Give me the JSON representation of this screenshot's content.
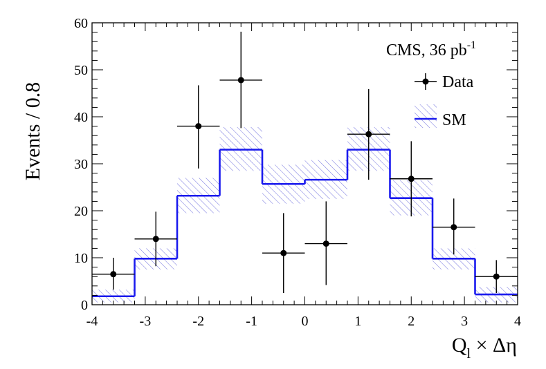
{
  "chart_data": {
    "type": "histogram",
    "xlabel": {
      "base": "Q",
      "sub": "l",
      "rest": " × Δη"
    },
    "ylabel": "Events / 0.8",
    "xlim": [
      -4,
      4
    ],
    "ylim": [
      0,
      60
    ],
    "xticks": [
      "-4",
      "-3",
      "-2",
      "-1",
      "0",
      "1",
      "2",
      "3",
      "4"
    ],
    "yticks": [
      "0",
      "10",
      "20",
      "30",
      "40",
      "50",
      "60"
    ],
    "annotation": {
      "text": "CMS, 36 pb",
      "sup": "-1"
    },
    "legend": {
      "position": "top-right",
      "entries": [
        {
          "label": "Data"
        },
        {
          "label": "SM"
        }
      ]
    },
    "bin_edges": [
      -4,
      -3.2,
      -2.4,
      -1.6,
      -0.8,
      0,
      0.8,
      1.6,
      2.4,
      3.2,
      4
    ],
    "sm": {
      "values": [
        1.8,
        9.8,
        23.2,
        33.0,
        25.7,
        26.6,
        33.0,
        22.7,
        9.8,
        2.2
      ],
      "band_low": [
        0.5,
        7.5,
        19.5,
        28.5,
        21.5,
        22.5,
        28.5,
        19.0,
        7.5,
        0.5
      ],
      "band_high": [
        3.2,
        12.0,
        27.0,
        37.8,
        29.8,
        30.8,
        37.8,
        26.5,
        12.0,
        3.8
      ],
      "color": "#1a1aee",
      "hatch_color": "#7b7be0"
    },
    "data_points": [
      {
        "x": -3.6,
        "y": 6.5,
        "err_low": 3.3,
        "err_high": 3.5
      },
      {
        "x": -2.8,
        "y": 14.0,
        "err_low": 5.8,
        "err_high": 5.8
      },
      {
        "x": -2.0,
        "y": 38.0,
        "err_low": 9.0,
        "err_high": 8.7
      },
      {
        "x": -1.2,
        "y": 47.8,
        "err_low": 10.2,
        "err_high": 10.3
      },
      {
        "x": -0.4,
        "y": 11.0,
        "err_low": 8.5,
        "err_high": 8.5
      },
      {
        "x": 0.4,
        "y": 13.0,
        "err_low": 8.8,
        "err_high": 9.0
      },
      {
        "x": 1.2,
        "y": 36.3,
        "err_low": 9.7,
        "err_high": 9.6
      },
      {
        "x": 2.0,
        "y": 26.8,
        "err_low": 8.0,
        "err_high": 8.0
      },
      {
        "x": 2.8,
        "y": 16.5,
        "err_low": 5.8,
        "err_high": 6.1
      },
      {
        "x": 3.6,
        "y": 6.0,
        "err_low": 3.5,
        "err_high": 3.5
      }
    ],
    "data_color": "#000000",
    "grid": false
  }
}
